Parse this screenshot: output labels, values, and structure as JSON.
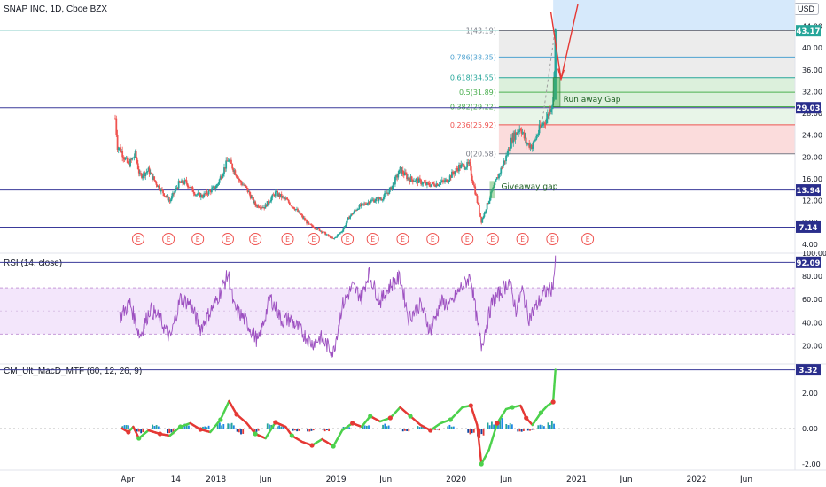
{
  "header": {
    "symbol": "SNAP INC, 1D, Cboe BZX",
    "currency": "USD"
  },
  "colors": {
    "up": "#26a69a",
    "down": "#ef5350",
    "hline": "#3a3a9a",
    "rsi": "#9c4fc0",
    "macd_up": "#4cd14c",
    "macd_dn": "#e53935",
    "tag": "#2a2e8c"
  },
  "chart_data": [
    {
      "type": "candlestick",
      "title": "SNAP INC, 1D, Cboe BZX",
      "x_ticks": [
        "Apr",
        "14",
        "2018",
        "Jun",
        "2019",
        "Jun",
        "2020",
        "Jun",
        "2021",
        "Jun",
        "2022",
        "Jun"
      ],
      "y_ticks": [
        4,
        8,
        12,
        16,
        20,
        24,
        28,
        32,
        36,
        40,
        44
      ],
      "ylim": [
        2.5,
        47.5
      ],
      "close_path": [
        [
          "2017-03-01",
          27.1
        ],
        [
          "2017-03-08",
          22
        ],
        [
          "2017-03-20",
          21
        ],
        [
          "2017-04-10",
          18.5
        ],
        [
          "2017-05-01",
          20.5
        ],
        [
          "2017-05-15",
          16.5
        ],
        [
          "2017-06-10",
          17.5
        ],
        [
          "2017-07-10",
          14.6
        ],
        [
          "2017-08-14",
          11.9
        ],
        [
          "2017-09-10",
          15.1
        ],
        [
          "2017-10-01",
          15.4
        ],
        [
          "2017-11-01",
          13.2
        ],
        [
          "2017-11-20",
          12.8
        ],
        [
          "2018-01-03",
          14.6
        ],
        [
          "2018-02-07",
          19.5
        ],
        [
          "2018-02-20",
          18.2
        ],
        [
          "2018-03-15",
          15.5
        ],
        [
          "2018-04-02",
          14.4
        ],
        [
          "2018-05-01",
          11.2
        ],
        [
          "2018-05-28",
          10.8
        ],
        [
          "2018-07-01",
          13.4
        ],
        [
          "2018-08-01",
          12.2
        ],
        [
          "2018-09-01",
          10.4
        ],
        [
          "2018-10-10",
          7.6
        ],
        [
          "2018-11-15",
          6.5
        ],
        [
          "2018-12-24",
          4.9
        ],
        [
          "2019-01-20",
          6.5
        ],
        [
          "2019-02-10",
          9
        ],
        [
          "2019-03-10",
          10.8
        ],
        [
          "2019-04-15",
          11.9
        ],
        [
          "2019-05-20",
          12.4
        ],
        [
          "2019-06-15",
          14
        ],
        [
          "2019-07-15",
          17.6
        ],
        [
          "2019-08-10",
          16
        ],
        [
          "2019-09-01",
          15.8
        ],
        [
          "2019-10-05",
          14.9
        ],
        [
          "2019-11-05",
          15.1
        ],
        [
          "2019-12-01",
          15.6
        ],
        [
          "2020-01-10",
          18.2
        ],
        [
          "2020-02-10",
          18.5
        ],
        [
          "2020-02-25",
          14.5
        ],
        [
          "2020-03-18",
          8.2
        ],
        [
          "2020-04-10",
          12.2
        ],
        [
          "2020-05-01",
          15.5
        ],
        [
          "2020-06-01",
          20
        ],
        [
          "2020-06-20",
          23.5
        ],
        [
          "2020-07-15",
          25.5
        ],
        [
          "2020-08-01",
          22.5
        ],
        [
          "2020-08-20",
          22
        ],
        [
          "2020-09-10",
          25
        ],
        [
          "2020-10-05",
          27.5
        ],
        [
          "2020-10-22",
          30.5
        ],
        [
          "2020-10-29",
          43.2
        ]
      ],
      "fib_levels": [
        {
          "ratio": "1",
          "label": "1(43.19)",
          "value": 43.19
        },
        {
          "ratio": "0.786",
          "label": "0.786(38.35)",
          "value": 38.35
        },
        {
          "ratio": "0.618",
          "label": "0.618(34.55)",
          "value": 34.55
        },
        {
          "ratio": "0.5",
          "label": "0.5(31.89)",
          "value": 31.89
        },
        {
          "ratio": "0.382",
          "label": "0.382(29.22)",
          "value": 29.22
        },
        {
          "ratio": "0.236",
          "label": "0.236(25.92)",
          "value": 25.92
        },
        {
          "ratio": "0",
          "label": "0(20.58)",
          "value": 20.58
        }
      ],
      "horizontal_lines": [
        29.03,
        13.94,
        7.14
      ],
      "price_tags": [
        {
          "label": "43.17",
          "value": 43.17,
          "color": "#26a69a"
        },
        {
          "label": "29.03",
          "value": 29.03,
          "color": "#2a2e8c"
        },
        {
          "label": "13.94",
          "value": 13.94,
          "color": "#2a2e8c"
        },
        {
          "label": "7.14",
          "value": 7.14,
          "color": "#2a2e8c"
        }
      ],
      "annotations": [
        {
          "text": "Run away Gap",
          "x": "2020-10-26",
          "y": 30.6
        },
        {
          "text": "Giveaway gap",
          "x": "2020-04-20",
          "y": 14.6
        }
      ],
      "earnings_marker": "E",
      "earnings_dates": [
        "2017-05-10",
        "2017-08-10",
        "2017-11-07",
        "2018-02-06",
        "2018-05-01",
        "2018-08-07",
        "2018-10-25",
        "2019-02-05",
        "2019-04-23",
        "2019-07-23",
        "2019-10-22",
        "2020-02-04",
        "2020-04-21",
        "2020-07-21",
        "2020-10-20",
        "2021-02-04"
      ]
    },
    {
      "type": "line",
      "title": "RSI (14, close)",
      "y_ticks": [
        20,
        40,
        60,
        80,
        100
      ],
      "band": [
        30,
        70
      ],
      "ylim": [
        5,
        100
      ],
      "last_value": "92.09",
      "path": [
        [
          "2017-03-15",
          45
        ],
        [
          "2017-04-15",
          57
        ],
        [
          "2017-05-15",
          28
        ],
        [
          "2017-06-15",
          52
        ],
        [
          "2017-07-15",
          43
        ],
        [
          "2017-08-15",
          26
        ],
        [
          "2017-09-15",
          61
        ],
        [
          "2017-10-15",
          56
        ],
        [
          "2017-11-15",
          35
        ],
        [
          "2018-01-01",
          58
        ],
        [
          "2018-02-08",
          82
        ],
        [
          "2018-02-25",
          53
        ],
        [
          "2018-04-01",
          42
        ],
        [
          "2018-05-10",
          23
        ],
        [
          "2018-06-15",
          62
        ],
        [
          "2018-07-20",
          42
        ],
        [
          "2018-08-15",
          43
        ],
        [
          "2018-09-15",
          33
        ],
        [
          "2018-10-20",
          22
        ],
        [
          "2018-11-15",
          27
        ],
        [
          "2018-12-24",
          14
        ],
        [
          "2019-01-20",
          55
        ],
        [
          "2019-02-20",
          71
        ],
        [
          "2019-03-20",
          62
        ],
        [
          "2019-04-10",
          83
        ],
        [
          "2019-05-15",
          58
        ],
        [
          "2019-06-15",
          72
        ],
        [
          "2019-07-15",
          79
        ],
        [
          "2019-08-10",
          44
        ],
        [
          "2019-09-15",
          56
        ],
        [
          "2019-10-15",
          33
        ],
        [
          "2019-11-15",
          58
        ],
        [
          "2019-12-15",
          55
        ],
        [
          "2020-01-20",
          72
        ],
        [
          "2020-02-15",
          80
        ],
        [
          "2020-03-05",
          40
        ],
        [
          "2020-03-18",
          20
        ],
        [
          "2020-04-20",
          58
        ],
        [
          "2020-05-15",
          66
        ],
        [
          "2020-06-10",
          76
        ],
        [
          "2020-07-01",
          51
        ],
        [
          "2020-07-20",
          68
        ],
        [
          "2020-08-10",
          44
        ],
        [
          "2020-09-01",
          54
        ],
        [
          "2020-09-25",
          66
        ],
        [
          "2020-10-20",
          70
        ],
        [
          "2020-10-29",
          92
        ]
      ]
    },
    {
      "type": "bar",
      "title": "CM_Ult_MacD_MTF (60, 12, 26, 9)",
      "y_ticks": [
        "2.00",
        "0.00",
        "-2.00"
      ],
      "ylim": [
        -2.3,
        3.6
      ],
      "last_value": "3.32",
      "macd_path": [
        [
          "2017-03-20",
          0.02
        ],
        [
          "2017-04-10",
          -0.2
        ],
        [
          "2017-04-25",
          0.1
        ],
        [
          "2017-05-12",
          -0.55
        ],
        [
          "2017-06-10",
          -0.1
        ],
        [
          "2017-07-15",
          -0.3
        ],
        [
          "2017-08-14",
          -0.4
        ],
        [
          "2017-09-15",
          0.1
        ],
        [
          "2017-10-15",
          0.3
        ],
        [
          "2017-11-15",
          -0.05
        ],
        [
          "2017-12-15",
          -0.2
        ],
        [
          "2018-01-15",
          0.5
        ],
        [
          "2018-02-10",
          1.55
        ],
        [
          "2018-03-05",
          0.8
        ],
        [
          "2018-04-05",
          0.3
        ],
        [
          "2018-05-01",
          -0.3
        ],
        [
          "2018-06-01",
          -0.55
        ],
        [
          "2018-07-01",
          0.35
        ],
        [
          "2018-08-01",
          0.1
        ],
        [
          "2018-08-20",
          -0.4
        ],
        [
          "2018-09-20",
          -0.75
        ],
        [
          "2018-10-20",
          -0.95
        ],
        [
          "2018-11-20",
          -0.6
        ],
        [
          "2018-12-24",
          -1.0
        ],
        [
          "2019-01-20",
          -0.1
        ],
        [
          "2019-02-20",
          0.3
        ],
        [
          "2019-03-20",
          0.1
        ],
        [
          "2019-04-15",
          0.7
        ],
        [
          "2019-05-15",
          0.4
        ],
        [
          "2019-06-15",
          0.6
        ],
        [
          "2019-07-15",
          1.2
        ],
        [
          "2019-08-15",
          0.7
        ],
        [
          "2019-09-15",
          0.2
        ],
        [
          "2019-10-15",
          -0.1
        ],
        [
          "2019-11-15",
          0.3
        ],
        [
          "2019-12-15",
          0.5
        ],
        [
          "2020-01-20",
          1.2
        ],
        [
          "2020-02-15",
          1.3
        ],
        [
          "2020-03-05",
          0.2
        ],
        [
          "2020-03-18",
          -2.0
        ],
        [
          "2020-04-10",
          -1.2
        ],
        [
          "2020-05-05",
          0.3
        ],
        [
          "2020-06-01",
          1.1
        ],
        [
          "2020-06-20",
          1.2
        ],
        [
          "2020-07-15",
          1.3
        ],
        [
          "2020-08-01",
          0.6
        ],
        [
          "2020-08-20",
          0.2
        ],
        [
          "2020-09-15",
          0.9
        ],
        [
          "2020-10-05",
          1.3
        ],
        [
          "2020-10-22",
          1.5
        ],
        [
          "2020-10-29",
          3.32
        ]
      ],
      "hist_bars": [
        [
          "2017-04-01",
          0.2
        ],
        [
          "2017-05-15",
          -0.25
        ],
        [
          "2017-07-01",
          0.2
        ],
        [
          "2017-08-15",
          -0.3
        ],
        [
          "2017-10-01",
          0.25
        ],
        [
          "2017-12-01",
          0.15
        ],
        [
          "2018-01-15",
          0.3
        ],
        [
          "2018-02-15",
          0.35
        ],
        [
          "2018-03-15",
          -0.3
        ],
        [
          "2018-05-01",
          -0.2
        ],
        [
          "2018-06-15",
          0.3
        ],
        [
          "2018-07-15",
          0.2
        ],
        [
          "2018-09-01",
          -0.15
        ],
        [
          "2018-10-15",
          -0.2
        ],
        [
          "2018-12-01",
          -0.15
        ],
        [
          "2019-02-01",
          0.1
        ],
        [
          "2019-04-01",
          0.2
        ],
        [
          "2019-06-01",
          0.25
        ],
        [
          "2019-08-01",
          -0.2
        ],
        [
          "2019-09-15",
          0.15
        ],
        [
          "2019-11-01",
          -0.12
        ],
        [
          "2019-12-15",
          0.2
        ],
        [
          "2020-02-15",
          -0.3
        ],
        [
          "2020-03-15",
          -0.5
        ],
        [
          "2020-04-15",
          0.35
        ],
        [
          "2020-05-10",
          0.55
        ],
        [
          "2020-06-10",
          0.3
        ],
        [
          "2020-07-15",
          -0.2
        ],
        [
          "2020-08-15",
          -0.15
        ],
        [
          "2020-09-15",
          0.2
        ],
        [
          "2020-10-15",
          0.4
        ]
      ]
    }
  ]
}
